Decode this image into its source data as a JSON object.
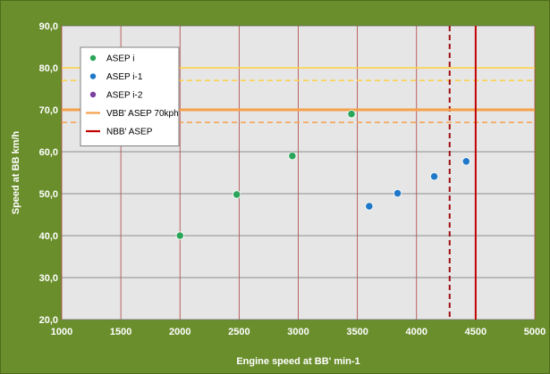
{
  "chart_data": {
    "type": "scatter",
    "title": "",
    "xlabel": "Engine speed  at BB' min-1",
    "ylabel": "Speed  at BB km/h",
    "xlim": [
      1000,
      5000
    ],
    "ylim": [
      20,
      90
    ],
    "x_ticks": [
      "1000",
      "1500",
      "2000",
      "2500",
      "3000",
      "3500",
      "4000",
      "4500",
      "5000"
    ],
    "y_ticks": [
      "20,0",
      "30,0",
      "40,0",
      "50,0",
      "60,0",
      "70,0",
      "80,0",
      "90,0"
    ],
    "grid": true,
    "legend_position": "top-left",
    "series": [
      {
        "name": "ASEP i",
        "kind": "points",
        "color": "#2aa55a",
        "points": [
          {
            "x": 2000,
            "y": 40.0
          },
          {
            "x": 2480,
            "y": 49.8
          },
          {
            "x": 2950,
            "y": 59.0
          },
          {
            "x": 3450,
            "y": 69.0
          }
        ]
      },
      {
        "name": "ASEP i-1",
        "kind": "points",
        "color": "#1f78c8",
        "points": [
          {
            "x": 3600,
            "y": 47.0
          },
          {
            "x": 3840,
            "y": 50.1
          },
          {
            "x": 4150,
            "y": 54.1
          },
          {
            "x": 4420,
            "y": 57.7
          }
        ]
      },
      {
        "name": "ASEP i-2",
        "kind": "points",
        "color": "#7b3fa0",
        "points": []
      },
      {
        "name": "VBB' ASEP 70kph",
        "kind": "hline",
        "color": "#f5a04a",
        "y": 70.0,
        "style": "solid"
      },
      {
        "name": "NBB' ASEP",
        "kind": "vline",
        "color": "#c00000",
        "x": 4500,
        "style": "solid"
      }
    ],
    "reference_lines": [
      {
        "kind": "hline",
        "y": 80.0,
        "color": "#ffd040",
        "style": "solid"
      },
      {
        "kind": "hline",
        "y": 77.0,
        "color": "#ffd040",
        "style": "dashed"
      },
      {
        "kind": "hline",
        "y": 67.0,
        "color": "#f5a04a",
        "style": "dashed"
      },
      {
        "kind": "vline",
        "x": 4280,
        "color": "#a01010",
        "style": "dashed"
      }
    ]
  }
}
